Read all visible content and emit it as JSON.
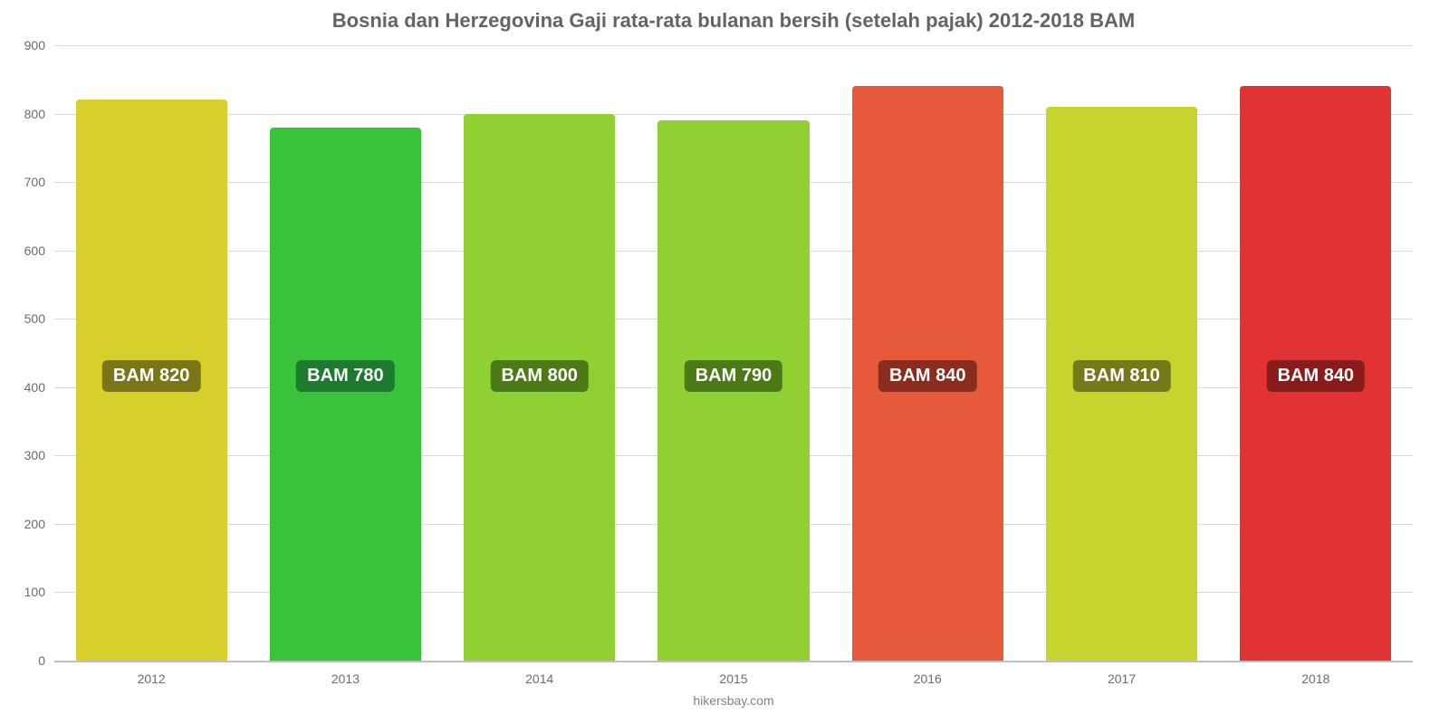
{
  "chart": {
    "type": "bar",
    "title": "Bosnia dan Herzegovina Gaji rata-rata bulanan bersih (setelah pajak) 2012-2018 BAM",
    "title_fontsize": 22,
    "title_color": "#636466",
    "categories": [
      "2012",
      "2013",
      "2014",
      "2015",
      "2016",
      "2017",
      "2018"
    ],
    "values": [
      820,
      780,
      800,
      790,
      840,
      810,
      840
    ],
    "value_labels": [
      "BAM 820",
      "BAM 780",
      "BAM 800",
      "BAM 790",
      "BAM 840",
      "BAM 810",
      "BAM 840"
    ],
    "bar_colors": [
      "#d7cf2c",
      "#39c33b",
      "#91d033",
      "#91d033",
      "#e6593a",
      "#c7d32e",
      "#e23334"
    ],
    "label_bg_colors": [
      "#7a7617",
      "#1e7a2e",
      "#4b7a17",
      "#4b7a17",
      "#8a2d1e",
      "#737a17",
      "#891b1b"
    ],
    "label_text_color": "#ffffff",
    "ylim": [
      0,
      900
    ],
    "yticks": [
      0,
      100,
      200,
      300,
      400,
      500,
      600,
      700,
      800,
      900
    ],
    "ytick_color": "#6b6c6e",
    "grid_color": "#d9d9d9",
    "axis_line_color": "#bfbfbf",
    "background_color": "#ffffff",
    "bar_width_pct": 78,
    "value_label_y_value": 440,
    "xtick_color": "#6b6c6e"
  },
  "footer": {
    "text": "hikersbay.com",
    "color": "#828385"
  }
}
